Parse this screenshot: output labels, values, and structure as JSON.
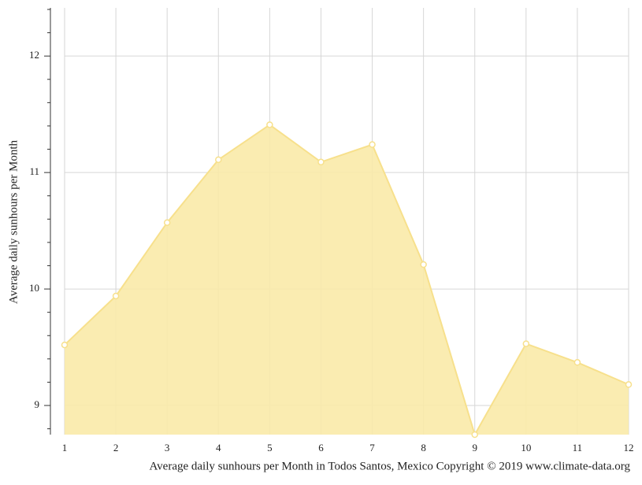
{
  "chart_data": {
    "type": "area",
    "title": "Average daily sunhours per Month in Todos Santos, Mexico Copyright © 2019 www.climate-data.org",
    "y_label": "Average daily sunhours per Month",
    "x": [
      1,
      2,
      3,
      4,
      5,
      6,
      7,
      8,
      9,
      10,
      11,
      12
    ],
    "values": [
      9.52,
      9.94,
      10.57,
      11.11,
      11.41,
      11.09,
      11.24,
      10.21,
      8.75,
      9.53,
      9.37,
      9.18
    ],
    "color": "#f7e08c",
    "fill": "#f9eaa8",
    "xlim": [
      1,
      12
    ],
    "xticks": [
      1,
      2,
      3,
      4,
      5,
      6,
      7,
      8,
      9,
      10,
      11,
      12
    ],
    "ylim": [
      8.75,
      12.4
    ],
    "yticks": [
      9,
      10,
      11,
      12
    ],
    "minor_yticks": [
      8.8,
      9.2,
      9.4,
      9.6,
      9.8,
      10.2,
      10.4,
      10.6,
      10.8,
      11.2,
      11.4,
      11.6,
      11.8,
      12.2,
      12.4
    ],
    "grid": true
  }
}
